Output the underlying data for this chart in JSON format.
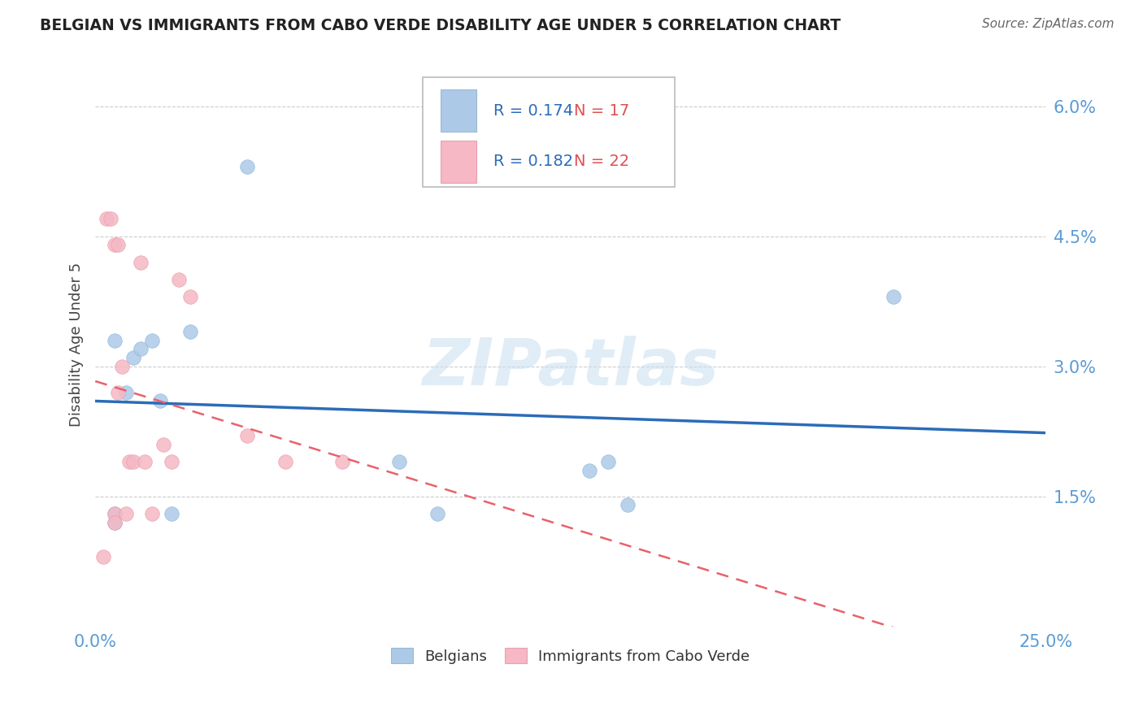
{
  "title": "BELGIAN VS IMMIGRANTS FROM CABO VERDE DISABILITY AGE UNDER 5 CORRELATION CHART",
  "source": "Source: ZipAtlas.com",
  "ylabel": "Disability Age Under 5",
  "xmin": 0.0,
  "xmax": 0.25,
  "ymin": 0.0,
  "ymax": 0.065,
  "yticks": [
    0.0,
    0.015,
    0.03,
    0.045,
    0.06
  ],
  "ytick_labels": [
    "",
    "1.5%",
    "3.0%",
    "4.5%",
    "6.0%"
  ],
  "xticks": [
    0.0,
    0.25
  ],
  "xtick_labels": [
    "0.0%",
    "25.0%"
  ],
  "belgians_x": [
    0.005,
    0.005,
    0.005,
    0.008,
    0.01,
    0.012,
    0.015,
    0.017,
    0.02,
    0.025,
    0.04,
    0.08,
    0.09,
    0.13,
    0.135,
    0.14,
    0.21
  ],
  "belgians_y": [
    0.013,
    0.012,
    0.033,
    0.027,
    0.031,
    0.032,
    0.033,
    0.026,
    0.013,
    0.034,
    0.053,
    0.019,
    0.013,
    0.018,
    0.019,
    0.014,
    0.038
  ],
  "cabo_verde_x": [
    0.002,
    0.003,
    0.004,
    0.005,
    0.005,
    0.005,
    0.006,
    0.006,
    0.007,
    0.008,
    0.009,
    0.01,
    0.012,
    0.013,
    0.015,
    0.018,
    0.02,
    0.022,
    0.025,
    0.04,
    0.05,
    0.065
  ],
  "cabo_verde_y": [
    0.008,
    0.047,
    0.047,
    0.013,
    0.012,
    0.044,
    0.027,
    0.044,
    0.03,
    0.013,
    0.019,
    0.019,
    0.042,
    0.019,
    0.013,
    0.021,
    0.019,
    0.04,
    0.038,
    0.022,
    0.019,
    0.019
  ],
  "blue_R": "0.174",
  "blue_N": "17",
  "pink_R": "0.182",
  "pink_N": "22",
  "blue_color": "#adc9e8",
  "pink_color": "#f5b8c4",
  "blue_line_color": "#2b6cb8",
  "pink_line_color": "#e8626a",
  "grid_color": "#cccccc",
  "watermark": "ZIPatlas",
  "legend_label_blue": "Belgians",
  "legend_label_pink": "Immigrants from Cabo Verde"
}
